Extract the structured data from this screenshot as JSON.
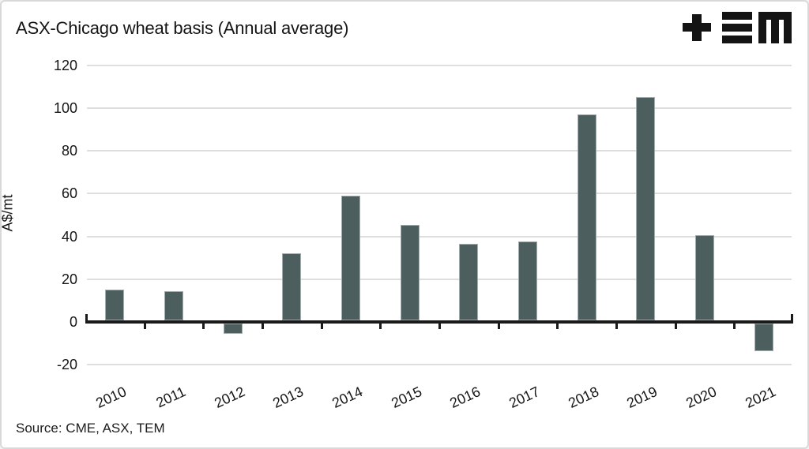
{
  "header": {
    "title": "ASX-Chicago wheat basis (Annual average)",
    "logo_name": "TEM"
  },
  "chart_data": {
    "type": "bar",
    "title": "ASX-Chicago wheat basis (Annual average)",
    "xlabel": "",
    "ylabel": "A$/mt",
    "categories": [
      "2010",
      "2011",
      "2012",
      "2013",
      "2014",
      "2015",
      "2016",
      "2017",
      "2018",
      "2019",
      "2020",
      "2021"
    ],
    "values": [
      15,
      14.5,
      -5.5,
      32,
      59,
      45.5,
      36.5,
      37.5,
      97,
      105,
      40.5,
      -13.5
    ],
    "y_ticks": [
      120,
      100,
      80,
      60,
      40,
      20,
      0,
      -20
    ],
    "ylim": [
      -20,
      120
    ],
    "grid": true,
    "legend": "none",
    "bar_color": "#4d5e5e",
    "bar_edge_color": "#a3acac",
    "gridline_color": "#dedede",
    "axis_color": "#1a1a1a",
    "text_color": "#151515"
  },
  "footer": {
    "source": "Source: CME, ASX, TEM"
  }
}
